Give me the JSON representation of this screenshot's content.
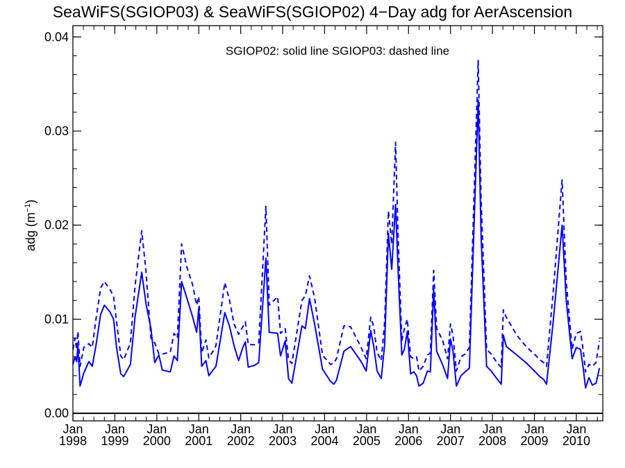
{
  "chart_data": {
    "type": "line",
    "title": "SeaWiFS(SGIOP03) & SeaWiFS(SGIOP02) 4−Day adg for AerAscension",
    "legend_note": "SGIOP02: solid line   SGIOP03: dashed line",
    "ylabel": "adg (m",
    "ylabel_sup": "−1",
    "ylabel_close": ")",
    "ylim": [
      -0.0008,
      0.0412
    ],
    "xlim": [
      1998.0,
      2010.63
    ],
    "grid": false,
    "y_ticks": [
      "0.00",
      "0.01",
      "0.02",
      "0.03",
      "0.04"
    ],
    "y_tick_values": [
      0.0,
      0.01,
      0.02,
      0.03,
      0.04
    ],
    "x_ticks": [
      {
        "month": "Jan",
        "year": "1998",
        "value": 1998
      },
      {
        "month": "Jan",
        "year": "1999",
        "value": 1999
      },
      {
        "month": "Jan",
        "year": "2000",
        "value": 2000
      },
      {
        "month": "Jan",
        "year": "2001",
        "value": 2001
      },
      {
        "month": "Jan",
        "year": "2002",
        "value": 2002
      },
      {
        "month": "Jan",
        "year": "2003",
        "value": 2003
      },
      {
        "month": "Jan",
        "year": "2004",
        "value": 2004
      },
      {
        "month": "Jan",
        "year": "2005",
        "value": 2005
      },
      {
        "month": "Jan",
        "year": "2006",
        "value": 2006
      },
      {
        "month": "Jan",
        "year": "2007",
        "value": 2007
      },
      {
        "month": "Jan",
        "year": "2008",
        "value": 2008
      },
      {
        "month": "Jan",
        "year": "2009",
        "value": 2009
      },
      {
        "month": "Jan",
        "year": "2010",
        "value": 2010
      }
    ],
    "series": [
      {
        "label": "SGIOP02",
        "style": "solid",
        "color": "#0000ff",
        "points": [
          [
            1998.0,
            0.0052
          ],
          [
            1998.05,
            0.006
          ],
          [
            1998.09,
            0.0055
          ],
          [
            1998.12,
            0.0072
          ],
          [
            1998.17,
            0.0029
          ],
          [
            1998.26,
            0.0043
          ],
          [
            1998.38,
            0.0055
          ],
          [
            1998.46,
            0.005
          ],
          [
            1998.55,
            0.0072
          ],
          [
            1998.66,
            0.0105
          ],
          [
            1998.75,
            0.0115
          ],
          [
            1998.88,
            0.0108
          ],
          [
            1998.97,
            0.01
          ],
          [
            1999.04,
            0.007
          ],
          [
            1999.14,
            0.0042
          ],
          [
            1999.21,
            0.0039
          ],
          [
            1999.37,
            0.0052
          ],
          [
            1999.48,
            0.0102
          ],
          [
            1999.64,
            0.015
          ],
          [
            1999.74,
            0.0117
          ],
          [
            1999.86,
            0.009
          ],
          [
            1999.95,
            0.0054
          ],
          [
            2000.05,
            0.0062
          ],
          [
            2000.13,
            0.0046
          ],
          [
            2000.32,
            0.0044
          ],
          [
            2000.41,
            0.0061
          ],
          [
            2000.49,
            0.0056
          ],
          [
            2000.59,
            0.014
          ],
          [
            2000.72,
            0.0122
          ],
          [
            2000.85,
            0.0103
          ],
          [
            2000.95,
            0.0086
          ],
          [
            2001.0,
            0.0112
          ],
          [
            2001.07,
            0.005
          ],
          [
            2001.17,
            0.0056
          ],
          [
            2001.24,
            0.004
          ],
          [
            2001.34,
            0.0046
          ],
          [
            2001.41,
            0.005
          ],
          [
            2001.62,
            0.0107
          ],
          [
            2001.73,
            0.0093
          ],
          [
            2001.84,
            0.0072
          ],
          [
            2001.95,
            0.0056
          ],
          [
            2002.05,
            0.007
          ],
          [
            2002.11,
            0.0076
          ],
          [
            2002.18,
            0.0049
          ],
          [
            2002.33,
            0.0051
          ],
          [
            2002.43,
            0.0054
          ],
          [
            2002.6,
            0.0165
          ],
          [
            2002.68,
            0.0086
          ],
          [
            2002.88,
            0.0085
          ],
          [
            2002.95,
            0.0061
          ],
          [
            2003.06,
            0.0077
          ],
          [
            2003.14,
            0.0037
          ],
          [
            2003.22,
            0.0032
          ],
          [
            2003.46,
            0.0093
          ],
          [
            2003.54,
            0.009
          ],
          [
            2003.64,
            0.0122
          ],
          [
            2003.76,
            0.0095
          ],
          [
            2003.95,
            0.0047
          ],
          [
            2004.14,
            0.0034
          ],
          [
            2004.22,
            0.0031
          ],
          [
            2004.28,
            0.0035
          ],
          [
            2004.46,
            0.0066
          ],
          [
            2004.62,
            0.0071
          ],
          [
            2004.87,
            0.0055
          ],
          [
            2004.99,
            0.0045
          ],
          [
            2005.1,
            0.0088
          ],
          [
            2005.17,
            0.0071
          ],
          [
            2005.25,
            0.0045
          ],
          [
            2005.35,
            0.0037
          ],
          [
            2005.43,
            0.0073
          ],
          [
            2005.52,
            0.0191
          ],
          [
            2005.6,
            0.0153
          ],
          [
            2005.69,
            0.0222
          ],
          [
            2005.75,
            0.0154
          ],
          [
            2005.84,
            0.0062
          ],
          [
            2005.9,
            0.0068
          ],
          [
            2005.97,
            0.0087
          ],
          [
            2006.05,
            0.0042
          ],
          [
            2006.13,
            0.0044
          ],
          [
            2006.19,
            0.004
          ],
          [
            2006.25,
            0.0029
          ],
          [
            2006.35,
            0.0032
          ],
          [
            2006.45,
            0.0045
          ],
          [
            2006.52,
            0.0044
          ],
          [
            2006.6,
            0.0132
          ],
          [
            2006.67,
            0.0066
          ],
          [
            2006.81,
            0.0052
          ],
          [
            2006.93,
            0.0037
          ],
          [
            2007.0,
            0.0079
          ],
          [
            2007.06,
            0.0066
          ],
          [
            2007.14,
            0.0029
          ],
          [
            2007.25,
            0.004
          ],
          [
            2007.35,
            0.0044
          ],
          [
            2007.45,
            0.0048
          ],
          [
            2007.66,
            0.0333
          ],
          [
            2007.73,
            0.0187
          ],
          [
            2007.86,
            0.005
          ],
          [
            2007.97,
            0.0045
          ],
          [
            2008.12,
            0.0036
          ],
          [
            2008.21,
            0.0031
          ],
          [
            2008.26,
            0.0083
          ],
          [
            2008.33,
            0.0071
          ],
          [
            2008.58,
            0.0062
          ],
          [
            2008.82,
            0.0053
          ],
          [
            2009.0,
            0.0045
          ],
          [
            2009.13,
            0.0039
          ],
          [
            2009.22,
            0.0036
          ],
          [
            2009.29,
            0.0031
          ],
          [
            2009.45,
            0.0098
          ],
          [
            2009.66,
            0.02
          ],
          [
            2009.76,
            0.012
          ],
          [
            2009.9,
            0.0058
          ],
          [
            2010.0,
            0.007
          ],
          [
            2010.1,
            0.0068
          ],
          [
            2010.17,
            0.0046
          ],
          [
            2010.22,
            0.0027
          ],
          [
            2010.3,
            0.0038
          ],
          [
            2010.38,
            0.003
          ],
          [
            2010.47,
            0.0032
          ],
          [
            2010.55,
            0.0048
          ]
        ]
      },
      {
        "label": "SGIOP03",
        "style": "dashed",
        "color": "#0000ff",
        "points": [
          [
            1998.0,
            0.0068
          ],
          [
            1998.05,
            0.008
          ],
          [
            1998.09,
            0.0068
          ],
          [
            1998.12,
            0.0087
          ],
          [
            1998.17,
            0.005
          ],
          [
            1998.26,
            0.007
          ],
          [
            1998.38,
            0.0074
          ],
          [
            1998.46,
            0.007
          ],
          [
            1998.55,
            0.01
          ],
          [
            1998.66,
            0.0133
          ],
          [
            1998.75,
            0.014
          ],
          [
            1998.88,
            0.0132
          ],
          [
            1998.97,
            0.0124
          ],
          [
            1999.04,
            0.0098
          ],
          [
            1999.14,
            0.0061
          ],
          [
            1999.21,
            0.0057
          ],
          [
            1999.37,
            0.0075
          ],
          [
            1999.48,
            0.0135
          ],
          [
            1999.64,
            0.0194
          ],
          [
            1999.74,
            0.0152
          ],
          [
            1999.86,
            0.008
          ],
          [
            1999.95,
            0.0075
          ],
          [
            2000.05,
            0.0063
          ],
          [
            2000.13,
            0.0063
          ],
          [
            2000.32,
            0.0065
          ],
          [
            2000.41,
            0.0085
          ],
          [
            2000.49,
            0.008
          ],
          [
            2000.59,
            0.018
          ],
          [
            2000.72,
            0.0155
          ],
          [
            2000.85,
            0.0137
          ],
          [
            2000.95,
            0.0115
          ],
          [
            2001.0,
            0.0124
          ],
          [
            2001.07,
            0.0064
          ],
          [
            2001.17,
            0.0078
          ],
          [
            2001.24,
            0.0059
          ],
          [
            2001.34,
            0.0066
          ],
          [
            2001.41,
            0.0072
          ],
          [
            2001.62,
            0.0139
          ],
          [
            2001.73,
            0.0121
          ],
          [
            2001.84,
            0.0095
          ],
          [
            2001.95,
            0.0084
          ],
          [
            2002.05,
            0.0092
          ],
          [
            2002.11,
            0.0097
          ],
          [
            2002.18,
            0.0073
          ],
          [
            2002.33,
            0.0073
          ],
          [
            2002.43,
            0.0075
          ],
          [
            2002.6,
            0.022
          ],
          [
            2002.68,
            0.0115
          ],
          [
            2002.88,
            0.0124
          ],
          [
            2002.95,
            0.0085
          ],
          [
            2003.06,
            0.009
          ],
          [
            2003.14,
            0.0057
          ],
          [
            2003.22,
            0.0053
          ],
          [
            2003.46,
            0.012
          ],
          [
            2003.54,
            0.0125
          ],
          [
            2003.64,
            0.0146
          ],
          [
            2003.76,
            0.0123
          ],
          [
            2003.95,
            0.0062
          ],
          [
            2004.14,
            0.0052
          ],
          [
            2004.22,
            0.0053
          ],
          [
            2004.28,
            0.0058
          ],
          [
            2004.46,
            0.0093
          ],
          [
            2004.62,
            0.0092
          ],
          [
            2004.87,
            0.007
          ],
          [
            2004.99,
            0.0058
          ],
          [
            2005.1,
            0.0102
          ],
          [
            2005.17,
            0.0092
          ],
          [
            2005.25,
            0.0065
          ],
          [
            2005.35,
            0.0056
          ],
          [
            2005.43,
            0.0097
          ],
          [
            2005.52,
            0.0215
          ],
          [
            2005.6,
            0.018
          ],
          [
            2005.69,
            0.0288
          ],
          [
            2005.75,
            0.019
          ],
          [
            2005.84,
            0.0077
          ],
          [
            2005.9,
            0.009
          ],
          [
            2005.97,
            0.01
          ],
          [
            2006.05,
            0.006
          ],
          [
            2006.13,
            0.0058
          ],
          [
            2006.19,
            0.006
          ],
          [
            2006.25,
            0.0045
          ],
          [
            2006.35,
            0.005
          ],
          [
            2006.45,
            0.0062
          ],
          [
            2006.52,
            0.0064
          ],
          [
            2006.6,
            0.0152
          ],
          [
            2006.67,
            0.009
          ],
          [
            2006.81,
            0.0078
          ],
          [
            2006.93,
            0.0058
          ],
          [
            2007.0,
            0.0095
          ],
          [
            2007.06,
            0.0083
          ],
          [
            2007.14,
            0.0045
          ],
          [
            2007.25,
            0.006
          ],
          [
            2007.35,
            0.0063
          ],
          [
            2007.45,
            0.007
          ],
          [
            2007.66,
            0.0375
          ],
          [
            2007.73,
            0.0227
          ],
          [
            2007.86,
            0.0068
          ],
          [
            2007.97,
            0.0063
          ],
          [
            2008.12,
            0.0053
          ],
          [
            2008.21,
            0.0049
          ],
          [
            2008.26,
            0.011
          ],
          [
            2008.33,
            0.0102
          ],
          [
            2008.58,
            0.0083
          ],
          [
            2008.82,
            0.007
          ],
          [
            2009.0,
            0.0063
          ],
          [
            2009.13,
            0.0057
          ],
          [
            2009.22,
            0.0054
          ],
          [
            2009.29,
            0.005
          ],
          [
            2009.45,
            0.013
          ],
          [
            2009.66,
            0.0248
          ],
          [
            2009.76,
            0.014
          ],
          [
            2009.9,
            0.0068
          ],
          [
            2010.0,
            0.0085
          ],
          [
            2010.1,
            0.0087
          ],
          [
            2010.17,
            0.0065
          ],
          [
            2010.22,
            0.0044
          ],
          [
            2010.3,
            0.0052
          ],
          [
            2010.38,
            0.005
          ],
          [
            2010.47,
            0.0054
          ],
          [
            2010.55,
            0.0077
          ]
        ]
      }
    ],
    "zero_line": 0.0
  }
}
